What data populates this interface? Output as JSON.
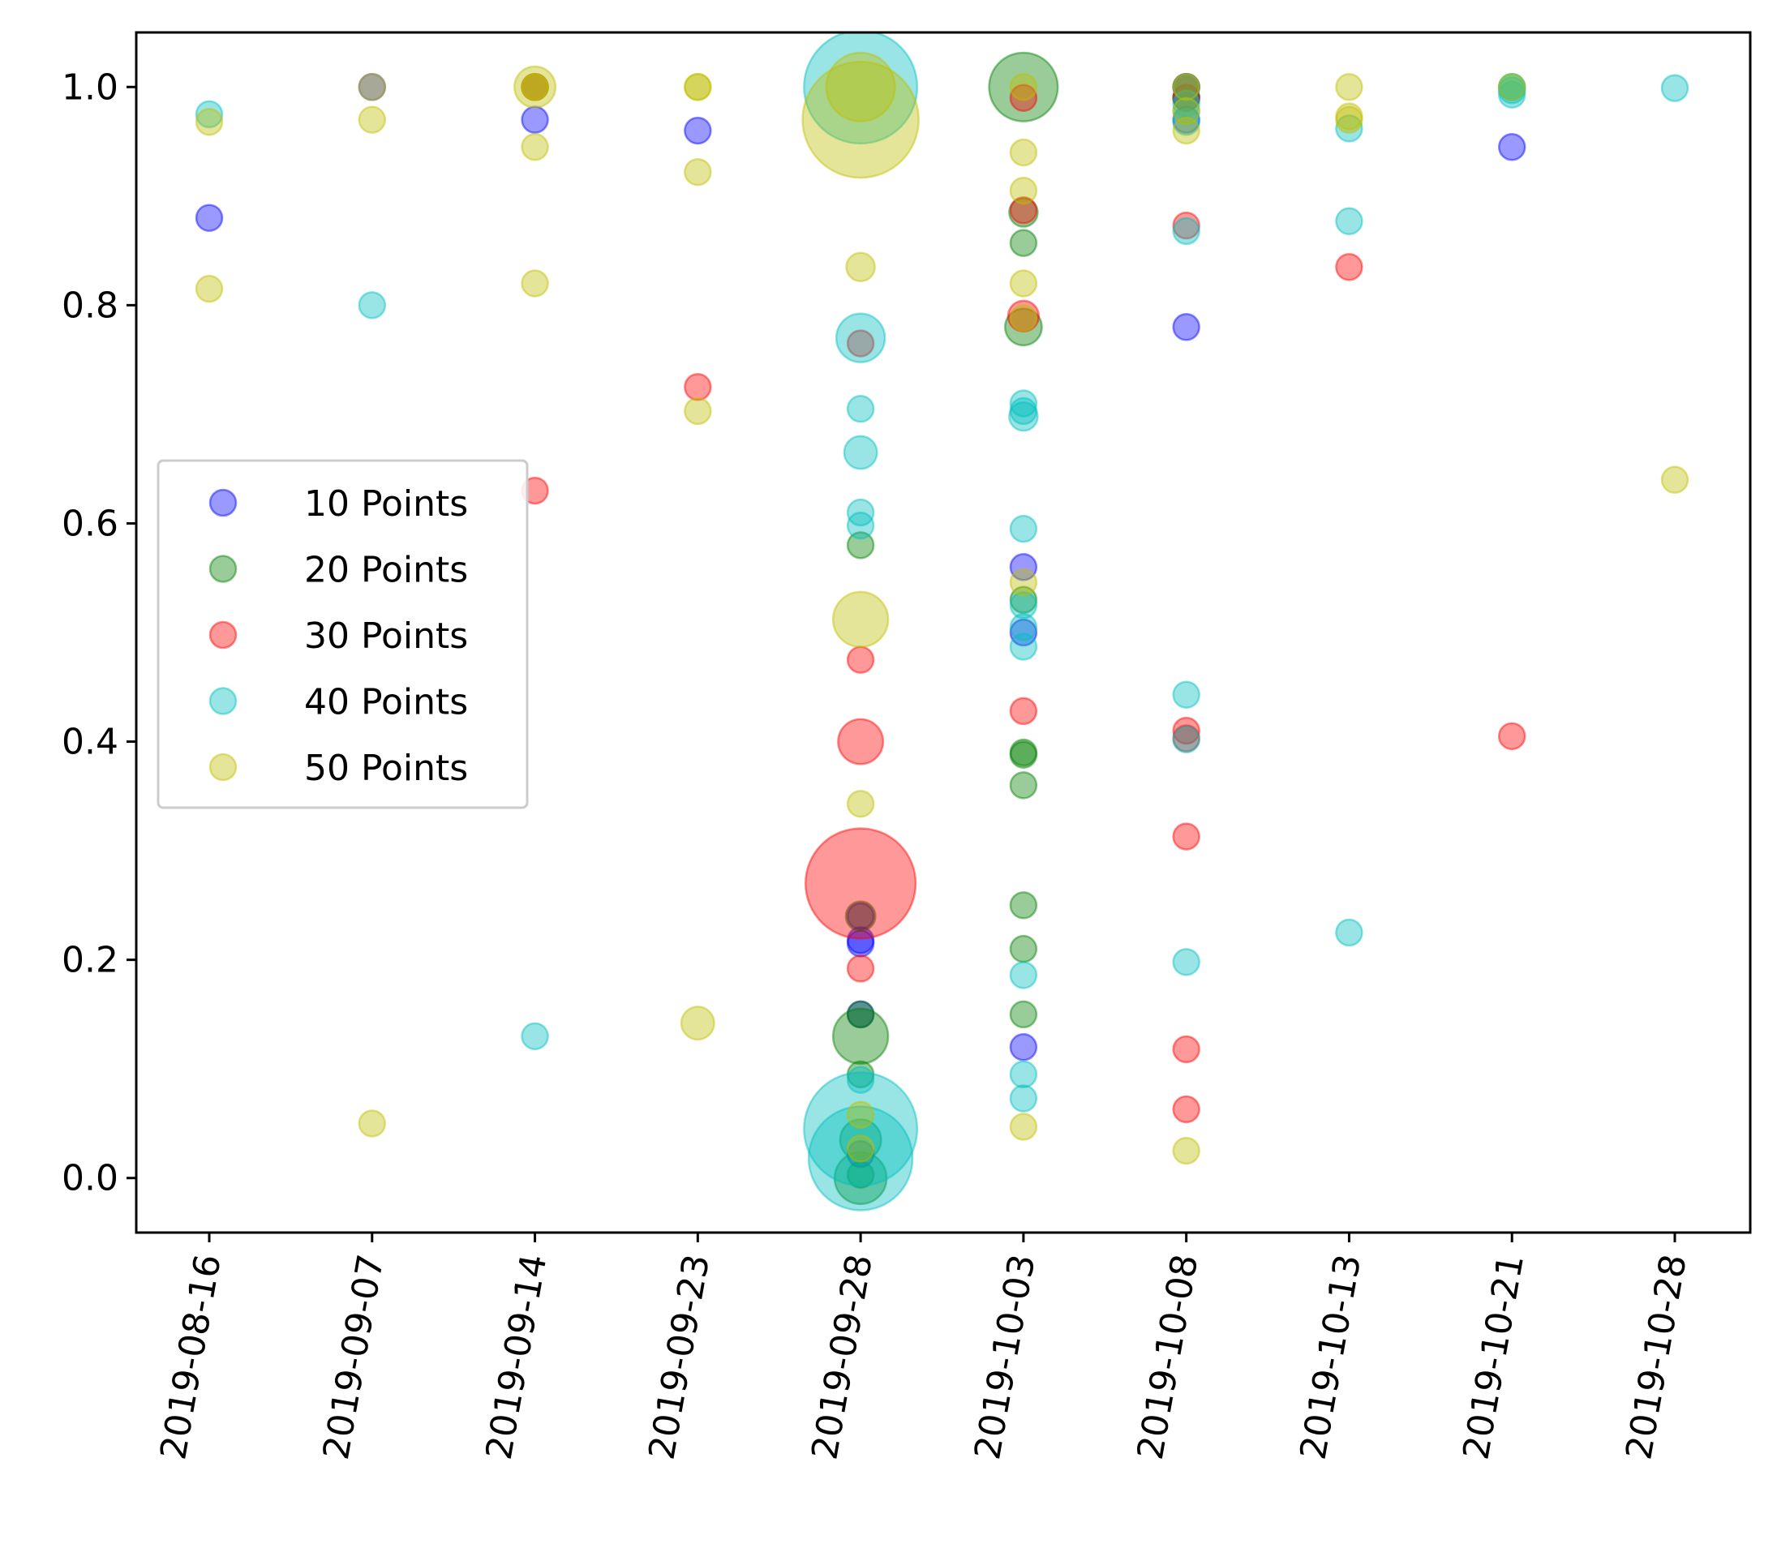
{
  "chart_data": {
    "type": "scatter",
    "title": "",
    "xlabel": "",
    "ylabel": "",
    "ylim": [
      -0.05,
      1.05
    ],
    "yticks": [
      "0.0",
      "0.2",
      "0.4",
      "0.6",
      "0.8",
      "1.0"
    ],
    "xticks": [
      "2019-08-16",
      "2019-09-07",
      "2019-09-14",
      "2019-09-23",
      "2019-09-28",
      "2019-10-03",
      "2019-10-08",
      "2019-10-13",
      "2019-10-21",
      "2019-10-28"
    ],
    "grid": false,
    "legend_position": "center-left",
    "series": [
      {
        "name": "10 Points",
        "color": "#0000ff",
        "points": [
          {
            "x": "2019-08-16",
            "y": 0.88,
            "s": 1
          },
          {
            "x": "2019-09-07",
            "y": 1.0,
            "s": 1
          },
          {
            "x": "2019-09-14",
            "y": 1.0,
            "s": 1
          },
          {
            "x": "2019-09-14",
            "y": 0.97,
            "s": 1
          },
          {
            "x": "2019-09-23",
            "y": 0.96,
            "s": 1
          },
          {
            "x": "2019-09-28",
            "y": 0.215,
            "s": 1
          },
          {
            "x": "2019-09-28",
            "y": 0.24,
            "s": 1
          },
          {
            "x": "2019-09-28",
            "y": 0.15,
            "s": 1
          },
          {
            "x": "2019-09-28",
            "y": 0.022,
            "s": 1
          },
          {
            "x": "2019-09-28",
            "y": 0.218,
            "s": 1
          },
          {
            "x": "2019-10-03",
            "y": 0.12,
            "s": 1
          },
          {
            "x": "2019-10-03",
            "y": 0.56,
            "s": 1
          },
          {
            "x": "2019-10-03",
            "y": 0.5,
            "s": 1
          },
          {
            "x": "2019-10-08",
            "y": 0.78,
            "s": 1
          },
          {
            "x": "2019-10-08",
            "y": 1.0,
            "s": 1
          },
          {
            "x": "2019-10-08",
            "y": 0.97,
            "s": 1
          },
          {
            "x": "2019-10-08",
            "y": 0.99,
            "s": 1
          },
          {
            "x": "2019-10-21",
            "y": 0.945,
            "s": 1
          }
        ]
      },
      {
        "name": "20 Points",
        "color": "#008000",
        "points": [
          {
            "x": "2019-09-28",
            "y": 0.58,
            "s": 1
          },
          {
            "x": "2019-09-28",
            "y": 0.24,
            "s": 1.3
          },
          {
            "x": "2019-09-28",
            "y": 0.15,
            "s": 1
          },
          {
            "x": "2019-09-28",
            "y": 0.095,
            "s": 1
          },
          {
            "x": "2019-09-28",
            "y": 0.035,
            "s": 2.5
          },
          {
            "x": "2019-09-28",
            "y": 0.003,
            "s": 1
          },
          {
            "x": "2019-09-28",
            "y": 0.0,
            "s": 4
          },
          {
            "x": "2019-09-28",
            "y": 0.13,
            "s": 4.5
          },
          {
            "x": "2019-10-03",
            "y": 0.885,
            "s": 1.2
          },
          {
            "x": "2019-10-03",
            "y": 0.78,
            "s": 2
          },
          {
            "x": "2019-10-03",
            "y": 0.53,
            "s": 1
          },
          {
            "x": "2019-10-03",
            "y": 0.39,
            "s": 1
          },
          {
            "x": "2019-10-03",
            "y": 0.36,
            "s": 1
          },
          {
            "x": "2019-10-03",
            "y": 0.388,
            "s": 1
          },
          {
            "x": "2019-10-03",
            "y": 0.25,
            "s": 1
          },
          {
            "x": "2019-10-03",
            "y": 0.21,
            "s": 1
          },
          {
            "x": "2019-10-03",
            "y": 0.15,
            "s": 1
          },
          {
            "x": "2019-10-03",
            "y": 0.857,
            "s": 1
          },
          {
            "x": "2019-10-03",
            "y": 1.0,
            "s": 7
          },
          {
            "x": "2019-10-08",
            "y": 1.0,
            "s": 1
          },
          {
            "x": "2019-10-08",
            "y": 0.99,
            "s": 1
          }
        ]
      },
      {
        "name": "30 Points",
        "color": "#ff0000",
        "points": [
          {
            "x": "2019-09-14",
            "y": 0.63,
            "s": 1
          },
          {
            "x": "2019-09-14",
            "y": 1.0,
            "s": 1
          },
          {
            "x": "2019-09-23",
            "y": 0.725,
            "s": 1
          },
          {
            "x": "2019-09-28",
            "y": 0.765,
            "s": 1
          },
          {
            "x": "2019-09-28",
            "y": 0.4,
            "s": 3
          },
          {
            "x": "2019-09-28",
            "y": 0.27,
            "s": 18
          },
          {
            "x": "2019-09-28",
            "y": 0.475,
            "s": 1
          },
          {
            "x": "2019-09-28",
            "y": 0.192,
            "s": 1
          },
          {
            "x": "2019-10-03",
            "y": 0.79,
            "s": 1.4
          },
          {
            "x": "2019-10-03",
            "y": 0.887,
            "s": 1
          },
          {
            "x": "2019-10-03",
            "y": 0.428,
            "s": 1
          },
          {
            "x": "2019-10-03",
            "y": 0.99,
            "s": 1
          },
          {
            "x": "2019-10-08",
            "y": 0.403,
            "s": 1
          },
          {
            "x": "2019-10-08",
            "y": 0.873,
            "s": 1
          },
          {
            "x": "2019-10-08",
            "y": 0.41,
            "s": 1
          },
          {
            "x": "2019-10-08",
            "y": 0.313,
            "s": 1
          },
          {
            "x": "2019-10-08",
            "y": 0.118,
            "s": 1
          },
          {
            "x": "2019-10-08",
            "y": 0.063,
            "s": 1
          },
          {
            "x": "2019-10-08",
            "y": 0.99,
            "s": 1
          },
          {
            "x": "2019-10-08",
            "y": 1.0,
            "s": 1
          },
          {
            "x": "2019-10-13",
            "y": 0.835,
            "s": 1
          },
          {
            "x": "2019-10-21",
            "y": 0.405,
            "s": 1
          }
        ]
      },
      {
        "name": "40 Points",
        "color": "#00bfbf",
        "points": [
          {
            "x": "2019-08-16",
            "y": 0.975,
            "s": 1
          },
          {
            "x": "2019-09-07",
            "y": 0.8,
            "s": 1
          },
          {
            "x": "2019-09-14",
            "y": 0.13,
            "s": 1
          },
          {
            "x": "2019-09-28",
            "y": 0.61,
            "s": 1
          },
          {
            "x": "2019-09-28",
            "y": 0.598,
            "s": 1
          },
          {
            "x": "2019-09-28",
            "y": 0.705,
            "s": 1
          },
          {
            "x": "2019-09-28",
            "y": 0.665,
            "s": 1.6
          },
          {
            "x": "2019-09-28",
            "y": 0.77,
            "s": 3.5
          },
          {
            "x": "2019-09-28",
            "y": 0.045,
            "s": 19
          },
          {
            "x": "2019-09-28",
            "y": 0.018,
            "s": 16
          },
          {
            "x": "2019-09-28",
            "y": 0.09,
            "s": 1
          },
          {
            "x": "2019-09-28",
            "y": 1.0,
            "s": 19
          },
          {
            "x": "2019-10-03",
            "y": 0.71,
            "s": 1
          },
          {
            "x": "2019-10-03",
            "y": 0.698,
            "s": 1.2
          },
          {
            "x": "2019-10-03",
            "y": 0.703,
            "s": 1
          },
          {
            "x": "2019-10-03",
            "y": 0.487,
            "s": 1
          },
          {
            "x": "2019-10-03",
            "y": 0.186,
            "s": 1
          },
          {
            "x": "2019-10-03",
            "y": 0.595,
            "s": 1
          },
          {
            "x": "2019-10-03",
            "y": 0.525,
            "s": 1
          },
          {
            "x": "2019-10-03",
            "y": 0.505,
            "s": 1
          },
          {
            "x": "2019-10-03",
            "y": 0.095,
            "s": 1
          },
          {
            "x": "2019-10-03",
            "y": 0.073,
            "s": 1
          },
          {
            "x": "2019-10-08",
            "y": 0.868,
            "s": 1
          },
          {
            "x": "2019-10-08",
            "y": 0.198,
            "s": 1
          },
          {
            "x": "2019-10-08",
            "y": 0.443,
            "s": 1
          },
          {
            "x": "2019-10-08",
            "y": 1.0,
            "s": 1
          },
          {
            "x": "2019-10-08",
            "y": 0.402,
            "s": 1
          },
          {
            "x": "2019-10-08",
            "y": 0.985,
            "s": 1
          },
          {
            "x": "2019-10-08",
            "y": 0.968,
            "s": 1
          },
          {
            "x": "2019-10-08",
            "y": 0.978,
            "s": 1
          },
          {
            "x": "2019-10-13",
            "y": 0.877,
            "s": 1
          },
          {
            "x": "2019-10-13",
            "y": 0.962,
            "s": 1
          },
          {
            "x": "2019-10-13",
            "y": 0.225,
            "s": 1
          },
          {
            "x": "2019-10-21",
            "y": 0.997,
            "s": 1
          },
          {
            "x": "2019-10-21",
            "y": 1.0,
            "s": 1
          },
          {
            "x": "2019-10-21",
            "y": 1.0,
            "s": 1
          },
          {
            "x": "2019-10-21",
            "y": 0.993,
            "s": 1
          },
          {
            "x": "2019-10-28",
            "y": 0.999,
            "s": 1
          }
        ]
      },
      {
        "name": "50 Points",
        "color": "#bfbf00",
        "points": [
          {
            "x": "2019-08-16",
            "y": 0.968,
            "s": 1
          },
          {
            "x": "2019-08-16",
            "y": 0.815,
            "s": 1
          },
          {
            "x": "2019-09-07",
            "y": 0.97,
            "s": 1
          },
          {
            "x": "2019-09-07",
            "y": 0.05,
            "s": 1
          },
          {
            "x": "2019-09-07",
            "y": 1.0,
            "s": 1
          },
          {
            "x": "2019-09-14",
            "y": 1.0,
            "s": 1
          },
          {
            "x": "2019-09-14",
            "y": 1.0,
            "s": 1
          },
          {
            "x": "2019-09-14",
            "y": 0.945,
            "s": 1
          },
          {
            "x": "2019-09-14",
            "y": 0.82,
            "s": 1
          },
          {
            "x": "2019-09-14",
            "y": 1.0,
            "s": 2.5
          },
          {
            "x": "2019-09-23",
            "y": 0.922,
            "s": 1
          },
          {
            "x": "2019-09-23",
            "y": 1.0,
            "s": 1
          },
          {
            "x": "2019-09-23",
            "y": 1.0,
            "s": 1
          },
          {
            "x": "2019-09-23",
            "y": 0.703,
            "s": 1
          },
          {
            "x": "2019-09-23",
            "y": 0.142,
            "s": 1.6
          },
          {
            "x": "2019-09-28",
            "y": 0.835,
            "s": 1.2
          },
          {
            "x": "2019-09-28",
            "y": 0.512,
            "s": 4.5
          },
          {
            "x": "2019-09-28",
            "y": 0.343,
            "s": 1
          },
          {
            "x": "2019-09-28",
            "y": 0.058,
            "s": 1
          },
          {
            "x": "2019-09-28",
            "y": 0.027,
            "s": 1
          },
          {
            "x": "2019-09-28",
            "y": 0.97,
            "s": 20
          },
          {
            "x": "2019-09-28",
            "y": 1.0,
            "s": 7
          },
          {
            "x": "2019-10-03",
            "y": 0.82,
            "s": 1
          },
          {
            "x": "2019-10-03",
            "y": 0.788,
            "s": 1
          },
          {
            "x": "2019-10-03",
            "y": 0.905,
            "s": 1
          },
          {
            "x": "2019-10-03",
            "y": 0.94,
            "s": 1
          },
          {
            "x": "2019-10-03",
            "y": 0.546,
            "s": 1
          },
          {
            "x": "2019-10-03",
            "y": 0.047,
            "s": 1
          },
          {
            "x": "2019-10-03",
            "y": 1.0,
            "s": 1
          },
          {
            "x": "2019-10-08",
            "y": 0.96,
            "s": 1
          },
          {
            "x": "2019-10-08",
            "y": 1.0,
            "s": 1
          },
          {
            "x": "2019-10-08",
            "y": 0.978,
            "s": 1
          },
          {
            "x": "2019-10-08",
            "y": 0.025,
            "s": 1
          },
          {
            "x": "2019-10-13",
            "y": 1.0,
            "s": 1
          },
          {
            "x": "2019-10-13",
            "y": 0.973,
            "s": 1
          },
          {
            "x": "2019-10-13",
            "y": 0.97,
            "s": 1
          },
          {
            "x": "2019-10-21",
            "y": 1.0,
            "s": 1
          },
          {
            "x": "2019-10-28",
            "y": 0.64,
            "s": 1
          }
        ]
      }
    ]
  }
}
